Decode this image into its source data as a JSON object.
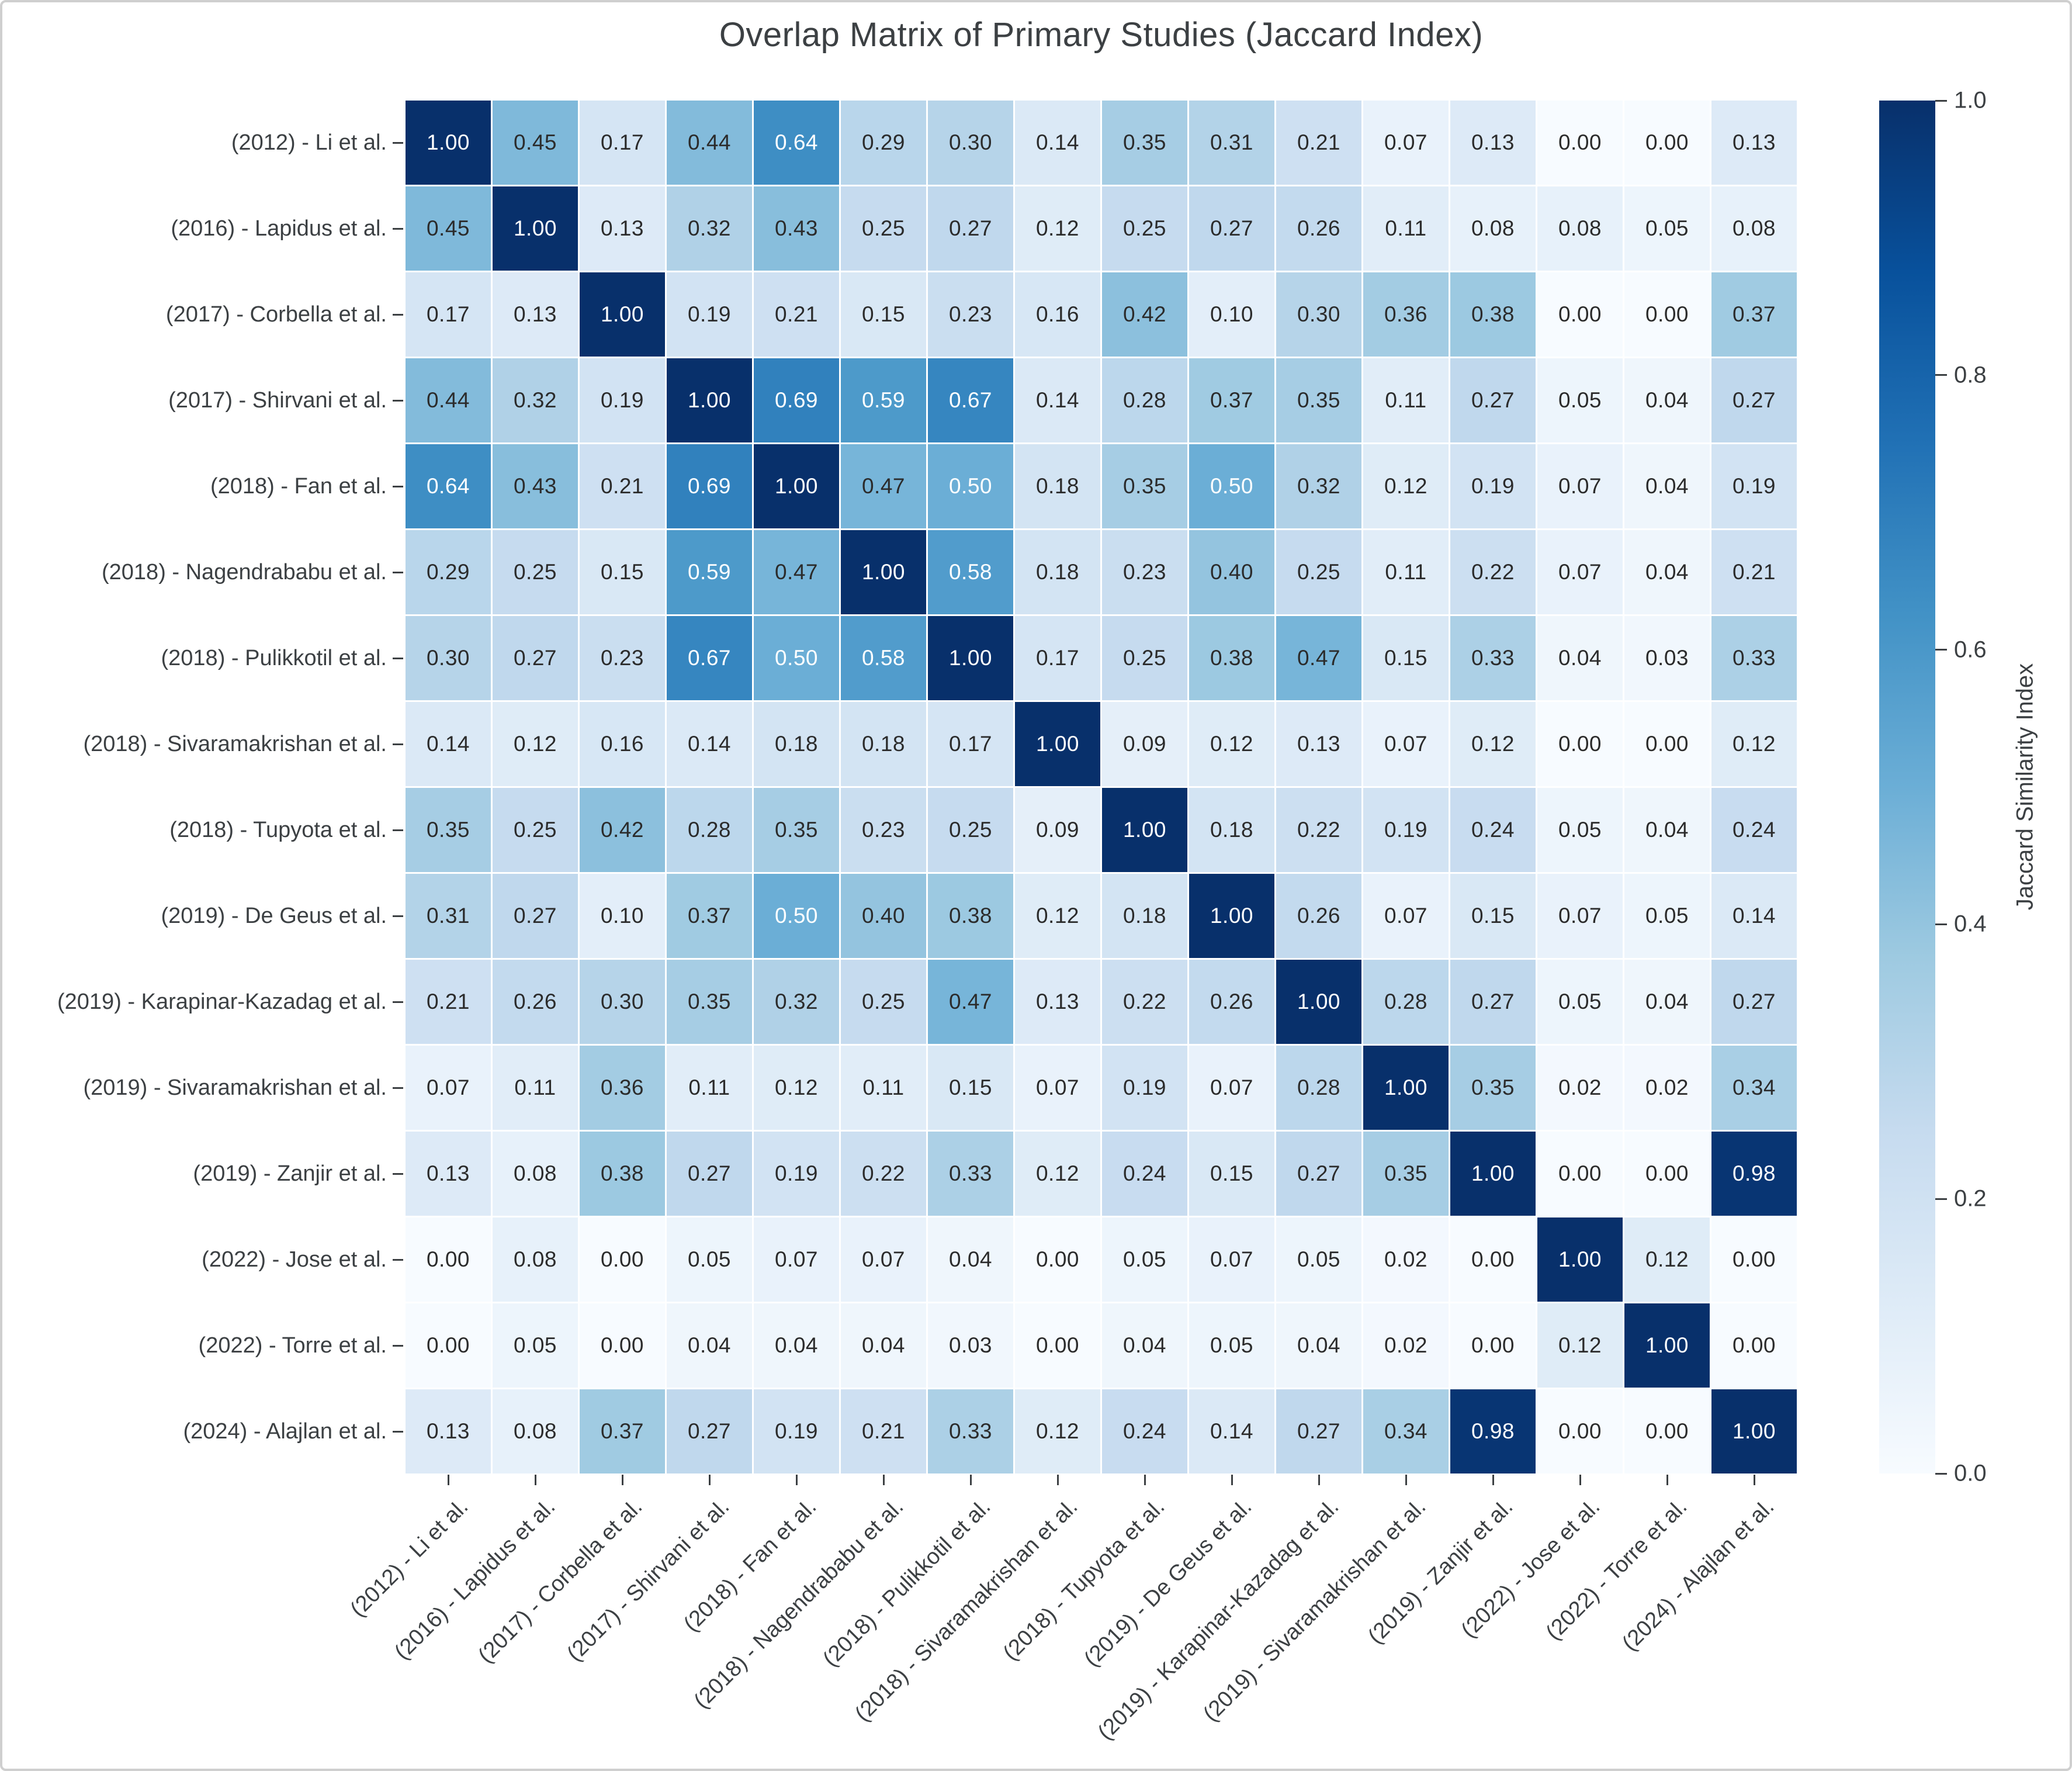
{
  "chart_data": {
    "type": "heatmap",
    "title": "Overlap Matrix of Primary Studies (Jaccard Index)",
    "y_labels": [
      "(2012) - Li et al.",
      "(2016) - Lapidus et al.",
      "(2017) - Corbella et al.",
      "(2017) - Shirvani et al.",
      "(2018) - Fan et al.",
      "(2018) - Nagendrababu et al.",
      "(2018) - Pulikkotil et al.",
      "(2018) - Sivaramakrishan et al.",
      "(2018) - Tupyota et al.",
      "(2019) - De Geus et al.",
      "(2019) - Karapinar-Kazadag et al.",
      "(2019) - Sivaramakrishan et al.",
      "(2019) - Zanjir et al.",
      "(2022) - Jose et al.",
      "(2022) - Torre et al.",
      "(2024) - Alajlan et al."
    ],
    "x_labels": [
      "(2012) - Li et al.",
      "(2016) - Lapidus et al.",
      "(2017) - Corbella et al.",
      "(2017) - Shirvani et al.",
      "(2018) - Fan et al.",
      "(2018) - Nagendrababu et al.",
      "(2018) - Pulikkotil et al.",
      "(2018) - Sivaramakrishan et al.",
      "(2018) - Tupyota et al.",
      "(2019) - De Geus et al.",
      "(2019) - Karapinar-Kazadag et al.",
      "(2019) - Sivaramakrishan et al.",
      "(2019) - Zanjir et al.",
      "(2022) - Jose et al.",
      "(2022) - Torre et al.",
      "(2024) - Alajlan et al."
    ],
    "matrix": [
      [
        1.0,
        0.45,
        0.17,
        0.44,
        0.64,
        0.29,
        0.3,
        0.14,
        0.35,
        0.31,
        0.21,
        0.07,
        0.13,
        0.0,
        0.0,
        0.13
      ],
      [
        0.45,
        1.0,
        0.13,
        0.32,
        0.43,
        0.25,
        0.27,
        0.12,
        0.25,
        0.27,
        0.26,
        0.11,
        0.08,
        0.08,
        0.05,
        0.08
      ],
      [
        0.17,
        0.13,
        1.0,
        0.19,
        0.21,
        0.15,
        0.23,
        0.16,
        0.42,
        0.1,
        0.3,
        0.36,
        0.38,
        0.0,
        0.0,
        0.37
      ],
      [
        0.44,
        0.32,
        0.19,
        1.0,
        0.69,
        0.59,
        0.67,
        0.14,
        0.28,
        0.37,
        0.35,
        0.11,
        0.27,
        0.05,
        0.04,
        0.27
      ],
      [
        0.64,
        0.43,
        0.21,
        0.69,
        1.0,
        0.47,
        0.5,
        0.18,
        0.35,
        0.5,
        0.32,
        0.12,
        0.19,
        0.07,
        0.04,
        0.19
      ],
      [
        0.29,
        0.25,
        0.15,
        0.59,
        0.47,
        1.0,
        0.58,
        0.18,
        0.23,
        0.4,
        0.25,
        0.11,
        0.22,
        0.07,
        0.04,
        0.21
      ],
      [
        0.3,
        0.27,
        0.23,
        0.67,
        0.5,
        0.58,
        1.0,
        0.17,
        0.25,
        0.38,
        0.47,
        0.15,
        0.33,
        0.04,
        0.03,
        0.33
      ],
      [
        0.14,
        0.12,
        0.16,
        0.14,
        0.18,
        0.18,
        0.17,
        1.0,
        0.09,
        0.12,
        0.13,
        0.07,
        0.12,
        0.0,
        0.0,
        0.12
      ],
      [
        0.35,
        0.25,
        0.42,
        0.28,
        0.35,
        0.23,
        0.25,
        0.09,
        1.0,
        0.18,
        0.22,
        0.19,
        0.24,
        0.05,
        0.04,
        0.24
      ],
      [
        0.31,
        0.27,
        0.1,
        0.37,
        0.5,
        0.4,
        0.38,
        0.12,
        0.18,
        1.0,
        0.26,
        0.07,
        0.15,
        0.07,
        0.05,
        0.14
      ],
      [
        0.21,
        0.26,
        0.3,
        0.35,
        0.32,
        0.25,
        0.47,
        0.13,
        0.22,
        0.26,
        1.0,
        0.28,
        0.27,
        0.05,
        0.04,
        0.27
      ],
      [
        0.07,
        0.11,
        0.36,
        0.11,
        0.12,
        0.11,
        0.15,
        0.07,
        0.19,
        0.07,
        0.28,
        1.0,
        0.35,
        0.02,
        0.02,
        0.34
      ],
      [
        0.13,
        0.08,
        0.38,
        0.27,
        0.19,
        0.22,
        0.33,
        0.12,
        0.24,
        0.15,
        0.27,
        0.35,
        1.0,
        0.0,
        0.0,
        0.98
      ],
      [
        0.0,
        0.08,
        0.0,
        0.05,
        0.07,
        0.07,
        0.04,
        0.0,
        0.05,
        0.07,
        0.05,
        0.02,
        0.0,
        1.0,
        0.12,
        0.0
      ],
      [
        0.0,
        0.05,
        0.0,
        0.04,
        0.04,
        0.04,
        0.03,
        0.0,
        0.04,
        0.05,
        0.04,
        0.02,
        0.0,
        0.12,
        1.0,
        0.0
      ],
      [
        0.13,
        0.08,
        0.37,
        0.27,
        0.19,
        0.21,
        0.33,
        0.12,
        0.24,
        0.14,
        0.27,
        0.34,
        0.98,
        0.0,
        0.0,
        1.0
      ]
    ],
    "value_decimals": 2,
    "colorbar": {
      "label": "Jaccard Similarity Index",
      "min": 0.0,
      "max": 1.0,
      "ticks": [
        0.0,
        0.2,
        0.4,
        0.6,
        0.8,
        1.0
      ],
      "tick_labels": [
        "0.0",
        "0.2",
        "0.4",
        "0.6",
        "0.8",
        "1.0"
      ]
    },
    "colormap": {
      "name": "Blues",
      "stops": [
        "#f7fbff",
        "#deebf7",
        "#c6dbef",
        "#9ecae1",
        "#6baed6",
        "#4292c6",
        "#2171b5",
        "#08519c",
        "#08306b"
      ]
    },
    "cell_text_dark": "#2b2b2b",
    "cell_text_light": "#ffffff",
    "light_text_threshold": 0.5,
    "grid_line_color": "#ffffff",
    "legend_position": "right",
    "grid": false
  }
}
